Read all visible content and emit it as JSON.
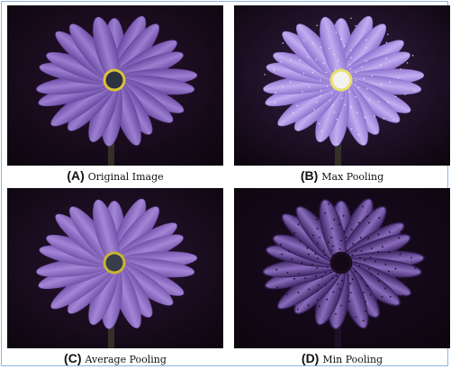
{
  "panels": [
    {
      "id": "a",
      "letter": "(A)",
      "label": "Original Image",
      "colors": {
        "petal_fill": "#9c7fd0",
        "petal_stroke": "#6a4aa3",
        "center": "#2e3140",
        "ring": "#d8c23a",
        "bg": "#2a1430"
      }
    },
    {
      "id": "b",
      "letter": "(B)",
      "label": "Max Pooling",
      "colors": {
        "petal_fill": "#c3aef0",
        "petal_stroke": "#8e72cf",
        "center": "#f2f2f0",
        "ring": "#e8e06a",
        "bg": "#3a2048"
      }
    },
    {
      "id": "c",
      "letter": "(C)",
      "label": "Average Pooling",
      "colors": {
        "petal_fill": "#a486d6",
        "petal_stroke": "#7454ac",
        "center": "#3a3d4c",
        "ring": "#c9b435",
        "bg": "#2c1634"
      }
    },
    {
      "id": "d",
      "letter": "(D)",
      "label": "Min Pooling",
      "colors": {
        "petal_fill": "#8a6cbc",
        "petal_stroke": "#3c2664",
        "center": "#120816",
        "ring": "#1c0e22",
        "bg": "#1c0c22"
      }
    }
  ]
}
